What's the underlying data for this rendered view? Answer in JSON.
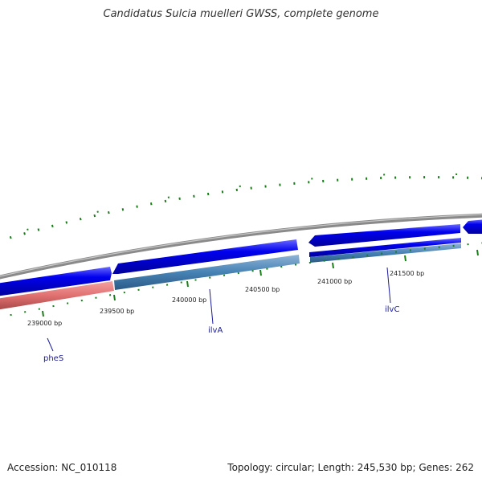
{
  "title": "Candidatus Sulcia muelleri GWSS, complete genome",
  "footer": {
    "accession": "Accession: NC_010118",
    "summary": "Topology: circular; Length: 245,530 bp; Genes: 262"
  },
  "scale_ticks": [
    "239000 bp",
    "239500 bp",
    "240000 bp",
    "240500 bp",
    "241000 bp",
    "241500 bp"
  ],
  "gene_labels": [
    "pheS",
    "ilvA",
    "ilvC"
  ],
  "colors": {
    "backbone": "#8a8a8a",
    "cds": "#0000ee",
    "gene_highlight_blue": "#4682b4",
    "gene_highlight_red": "#e07070",
    "gc_ticks": "#1a7f1a",
    "label_blue": "#1a1a99"
  }
}
